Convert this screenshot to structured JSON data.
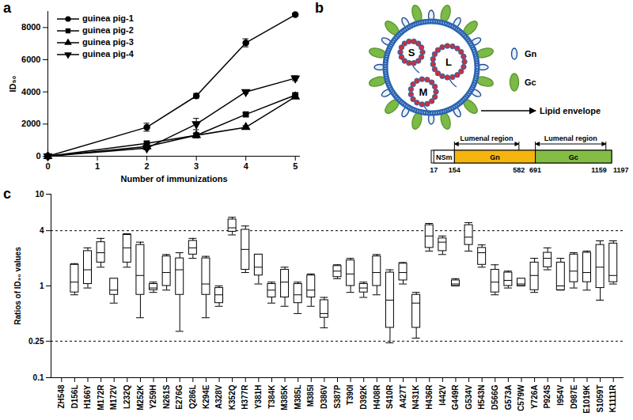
{
  "chart_data": [
    {
      "type": "line",
      "panel_label": "a",
      "xlabel": "Number of immunizations",
      "ylabel": "ID₅₀",
      "x": [
        0,
        2,
        3,
        4,
        5
      ],
      "series": [
        {
          "name": "guinea pig-1",
          "color": "#000000",
          "marker": "circle",
          "values": [
            0,
            1800,
            3750,
            7050,
            8800
          ],
          "errors": [
            0,
            250,
            150,
            250,
            100
          ]
        },
        {
          "name": "guinea pig-2",
          "color": "#000000",
          "marker": "square",
          "values": [
            0,
            800,
            1300,
            2600,
            3800
          ],
          "errors": [
            0,
            100,
            100,
            100,
            100
          ]
        },
        {
          "name": "guinea pig-3",
          "color": "#000000",
          "marker": "triangle",
          "values": [
            0,
            600,
            1300,
            1800,
            3700
          ],
          "errors": [
            0,
            100,
            100,
            100,
            100
          ]
        },
        {
          "name": "guinea pig-4",
          "color": "#000000",
          "marker": "triangle-down",
          "values": [
            0,
            500,
            2000,
            4000,
            4850
          ],
          "errors": [
            0,
            100,
            350,
            100,
            150
          ]
        }
      ],
      "xlim": [
        0,
        5.1
      ],
      "ylim": [
        0,
        9000
      ],
      "xticks": [
        0,
        1,
        2,
        3,
        4,
        5
      ],
      "yticks": [
        0,
        2000,
        4000,
        6000,
        8000
      ],
      "legend": "upper left"
    },
    {
      "type": "box",
      "panel_label": "c",
      "ylabel": "Ratios of ID₉₀ values",
      "color": "#000000",
      "categories": [
        "ZH548",
        "D156L",
        "H166Y",
        "M172R",
        "M172V",
        "L232Q",
        "M252K",
        "Y259H",
        "N261S",
        "E276G",
        "Q286L",
        "K294E",
        "A328V",
        "K352Q",
        "H377R",
        "Y381H",
        "T384K",
        "M385K",
        "M385L",
        "M385I",
        "D386V",
        "S387P",
        "T390I",
        "D392K",
        "H408R",
        "S410R",
        "A427T",
        "N431K",
        "H436R",
        "I442V",
        "G449R",
        "G534V",
        "H543N",
        "D566G",
        "G573A",
        "C579W",
        "Y726A",
        "P924S",
        "I954V",
        "D987E",
        "E1019K",
        "S1059T",
        "K1111R"
      ],
      "min": [
        null,
        0.8,
        0.95,
        1.6,
        0.65,
        1.6,
        0.45,
        0.85,
        0.9,
        0.32,
        2.0,
        0.45,
        0.6,
        3.6,
        1.4,
        1.05,
        0.65,
        0.6,
        0.5,
        0.6,
        0.35,
        1.2,
        0.85,
        0.75,
        0.8,
        0.24,
        1.05,
        0.27,
        2.4,
        2.2,
        1.0,
        2.4,
        1.6,
        0.8,
        0.95,
        1.0,
        0.85,
        1.5,
        0.9,
        0.95,
        0.9,
        0.7,
        1.05
      ],
      "q1": [
        null,
        0.85,
        1.05,
        1.8,
        0.8,
        1.8,
        0.8,
        0.9,
        1.0,
        0.8,
        2.2,
        0.8,
        0.65,
        3.9,
        1.5,
        1.3,
        0.75,
        0.75,
        0.65,
        0.75,
        0.45,
        1.25,
        1.0,
        0.85,
        1.0,
        0.35,
        1.15,
        0.35,
        2.6,
        2.4,
        1.0,
        2.8,
        1.7,
        0.85,
        1.0,
        1.0,
        0.9,
        1.6,
        0.9,
        1.1,
        1.1,
        0.95,
        1.1
      ],
      "median": [
        null,
        1.1,
        1.5,
        2.3,
        0.9,
        2.6,
        1.3,
        0.95,
        1.4,
        1.5,
        2.6,
        1.05,
        0.8,
        4.3,
        2.5,
        1.6,
        0.9,
        1.1,
        0.8,
        0.9,
        0.5,
        1.45,
        1.35,
        0.95,
        1.4,
        0.7,
        1.4,
        0.65,
        3.5,
        3.0,
        1.05,
        3.4,
        2.3,
        1.1,
        1.15,
        1.05,
        1.3,
        2.0,
        1.0,
        1.45,
        1.4,
        1.6,
        1.3
      ],
      "q3": [
        null,
        1.7,
        2.4,
        3.0,
        1.2,
        3.6,
        2.8,
        1.05,
        2.1,
        2.0,
        3.1,
        2.0,
        0.95,
        5.3,
        4.1,
        2.2,
        1.05,
        1.5,
        1.05,
        1.3,
        0.7,
        1.65,
        1.9,
        1.05,
        2.1,
        1.4,
        1.75,
        0.8,
        4.6,
        3.3,
        1.15,
        4.6,
        2.6,
        1.5,
        1.4,
        1.2,
        1.8,
        2.3,
        1.8,
        2.2,
        2.3,
        2.8,
        2.9
      ],
      "max": [
        null,
        1.75,
        2.6,
        3.3,
        1.2,
        3.7,
        3.0,
        1.1,
        2.2,
        2.3,
        3.3,
        2.1,
        1.0,
        5.6,
        4.5,
        2.2,
        1.1,
        1.6,
        1.1,
        1.35,
        0.75,
        1.7,
        2.0,
        1.1,
        2.2,
        1.5,
        1.8,
        0.85,
        4.8,
        3.5,
        1.2,
        4.9,
        2.8,
        1.7,
        1.45,
        1.2,
        2.0,
        2.6,
        2.0,
        2.3,
        2.4,
        3.1,
        3.1
      ],
      "ylim": [
        0.1,
        10
      ],
      "yticks": [
        0.1,
        0.25,
        1,
        4,
        10
      ],
      "log": "y",
      "reference_lines": [
        4,
        0.25
      ]
    }
  ],
  "diagram": {
    "panel_label": "b",
    "segments": [
      "S",
      "L",
      "M"
    ],
    "spikes": [
      {
        "label": "Gn",
        "fill": "#e8f0f8",
        "stroke": "#1f4e96"
      },
      {
        "label": "Gc",
        "fill": "#7cb947",
        "stroke": "#5b9a30"
      }
    ],
    "envelope_label": "Lipid envelope",
    "envelope_color": "#2c64b0",
    "protein_map": {
      "domains": [
        {
          "label": "NSm",
          "start": 17,
          "end": 154,
          "color": "#ffffff"
        },
        {
          "label": "Gn",
          "start": 154,
          "end": 691,
          "color": "#f5b50f"
        },
        {
          "label": "Gc",
          "start": 691,
          "end": 1197,
          "color": "#84bd45"
        }
      ],
      "positions": [
        17,
        154,
        582,
        691,
        1159,
        1197
      ],
      "lumenal_regions": [
        {
          "label": "Lumenal region",
          "start": 154,
          "end": 582
        },
        {
          "label": "Lumenal region",
          "start": 691,
          "end": 1159
        }
      ]
    }
  }
}
